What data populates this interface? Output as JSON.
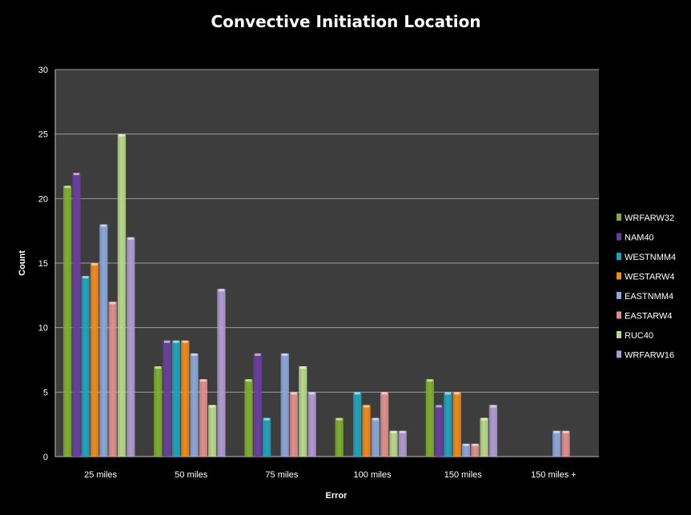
{
  "chart_data": {
    "type": "bar",
    "title": "Convective Initiation Location",
    "xlabel": "Error",
    "ylabel": "Count",
    "ylim": [
      0,
      30
    ],
    "yticks": [
      0,
      5,
      10,
      15,
      20,
      25,
      30
    ],
    "grid": true,
    "legend_position": "right",
    "categories": [
      "25 miles",
      "50 miles",
      "75 miles",
      "100 miles",
      "150 miles",
      "150 miles +"
    ],
    "series": [
      {
        "name": "WRFARW32",
        "color": "#7fae2e",
        "values": [
          21,
          7,
          6,
          3,
          6,
          0
        ]
      },
      {
        "name": "NAM40",
        "color": "#6a3f9e",
        "values": [
          22,
          9,
          8,
          0,
          4,
          0
        ]
      },
      {
        "name": "WESTNMM4",
        "color": "#1fa3bd",
        "values": [
          14,
          9,
          3,
          5,
          5,
          0
        ]
      },
      {
        "name": "WESTARW4",
        "color": "#f08a1c",
        "values": [
          15,
          9,
          0,
          4,
          5,
          0
        ]
      },
      {
        "name": "EASTNMM4",
        "color": "#8ca6d9",
        "values": [
          18,
          8,
          8,
          3,
          1,
          2
        ]
      },
      {
        "name": "EASTARW4",
        "color": "#e08f8c",
        "values": [
          12,
          6,
          5,
          5,
          1,
          2
        ]
      },
      {
        "name": "RUC40",
        "color": "#b7d98a",
        "values": [
          25,
          4,
          7,
          2,
          3,
          0
        ]
      },
      {
        "name": "WRFARW16",
        "color": "#b09bd1",
        "values": [
          17,
          13,
          5,
          2,
          4,
          0
        ]
      }
    ]
  }
}
